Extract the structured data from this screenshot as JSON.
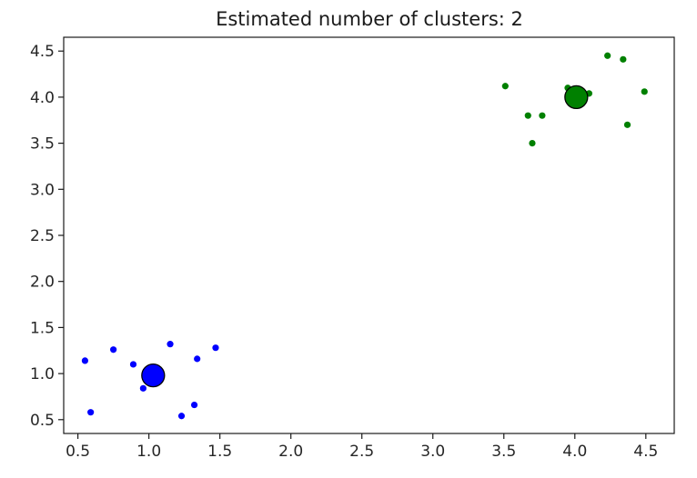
{
  "chart_data": {
    "type": "scatter",
    "title": "Estimated number of clusters: 2",
    "xlabel": "",
    "ylabel": "",
    "xlim": [
      0.4,
      4.7
    ],
    "ylim": [
      0.35,
      4.65
    ],
    "xticks": [
      0.5,
      1.0,
      1.5,
      2.0,
      2.5,
      3.0,
      3.5,
      4.0,
      4.5
    ],
    "yticks": [
      0.5,
      1.0,
      1.5,
      2.0,
      2.5,
      3.0,
      3.5,
      4.0,
      4.5
    ],
    "xtick_labels": [
      "0.5",
      "1.0",
      "1.5",
      "2.0",
      "2.5",
      "3.0",
      "3.5",
      "4.0",
      "4.5"
    ],
    "ytick_labels": [
      "0.5",
      "1.0",
      "1.5",
      "2.0",
      "2.5",
      "3.0",
      "3.5",
      "4.0",
      "4.5"
    ],
    "grid": false,
    "series": [
      {
        "color": "#0000ff",
        "points": [
          [
            0.55,
            1.14
          ],
          [
            0.59,
            0.58
          ],
          [
            0.75,
            1.26
          ],
          [
            0.89,
            1.1
          ],
          [
            0.96,
            0.84
          ],
          [
            1.15,
            1.32
          ],
          [
            1.23,
            0.54
          ],
          [
            1.32,
            0.66
          ],
          [
            1.34,
            1.16
          ],
          [
            1.47,
            1.28
          ]
        ],
        "center": [
          1.03,
          0.98
        ]
      },
      {
        "color": "#008000",
        "points": [
          [
            3.51,
            4.12
          ],
          [
            3.67,
            3.8
          ],
          [
            3.7,
            3.5
          ],
          [
            3.77,
            3.8
          ],
          [
            3.95,
            4.1
          ],
          [
            4.1,
            4.04
          ],
          [
            4.23,
            4.45
          ],
          [
            4.34,
            4.41
          ],
          [
            4.37,
            3.7
          ],
          [
            4.49,
            4.06
          ]
        ],
        "center": [
          4.01,
          4.0
        ]
      }
    ]
  }
}
